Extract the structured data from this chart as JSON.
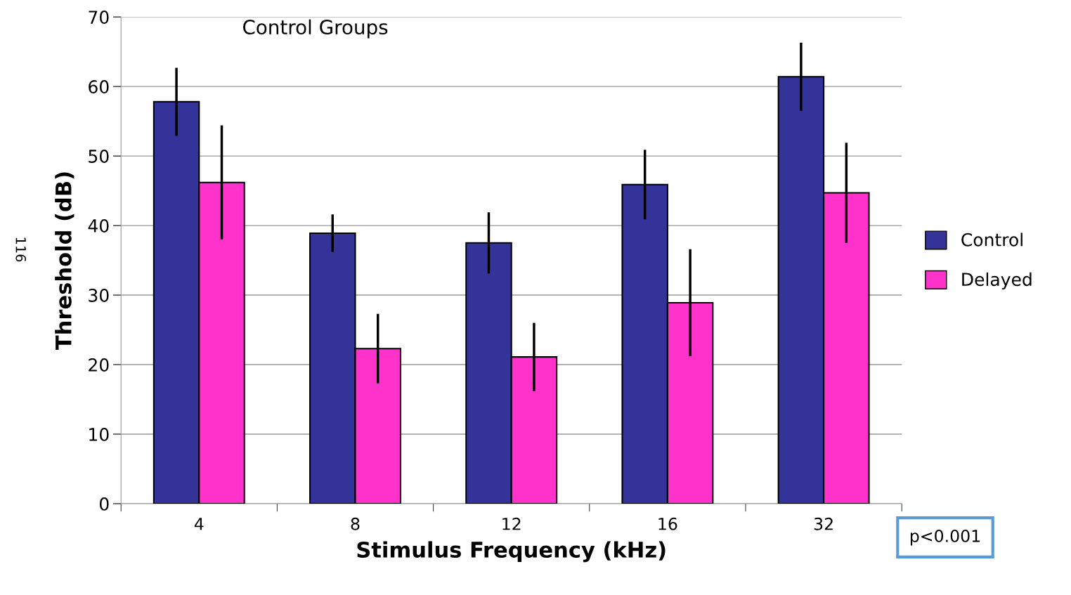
{
  "chart_data": {
    "type": "bar",
    "title": "Control Groups",
    "xlabel": "Stimulus Frequency (kHz)",
    "ylabel": "Threshold (dB)",
    "categories": [
      "4",
      "8",
      "12",
      "16",
      "32"
    ],
    "series": [
      {
        "name": "Control",
        "color": "#333399",
        "values": [
          57.8,
          38.9,
          37.5,
          45.9,
          61.4
        ],
        "errors": [
          4.9,
          2.7,
          4.4,
          5.0,
          4.9
        ]
      },
      {
        "name": "Delayed",
        "color": "#ff33cc",
        "values": [
          46.2,
          22.3,
          21.1,
          28.9,
          44.7
        ],
        "errors": [
          8.2,
          5.0,
          4.9,
          7.7,
          7.2
        ]
      }
    ],
    "ylim": [
      0,
      70
    ],
    "yticks": [
      0,
      10,
      20,
      30,
      40,
      50,
      60,
      70
    ],
    "grid": "y",
    "legend": "right",
    "annotations": [
      "p<0.001",
      "116"
    ]
  }
}
